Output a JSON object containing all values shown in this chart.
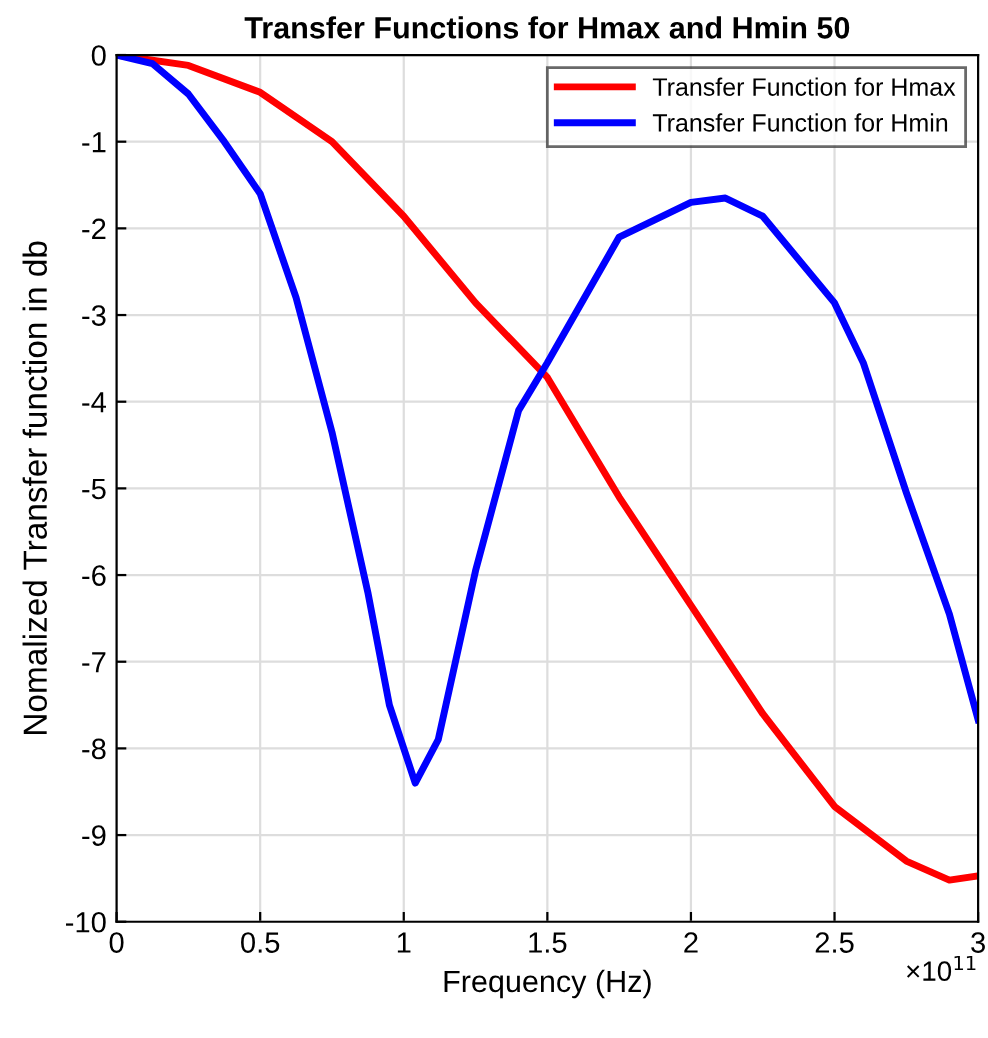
{
  "chart_data": {
    "type": "line",
    "title": "Transfer Functions for Hmax and Hmin 50",
    "xlabel": "Frequency (Hz)",
    "ylabel": "Nomalized Transfer function in db",
    "annotations": [
      "×10$^{11}$"
    ],
    "series": [
      {
        "name": "Transfer Function for Hmax",
        "color": "#ff0000",
        "x": [
          0,
          0.25,
          0.5,
          0.75,
          1.0,
          1.25,
          1.5,
          1.75,
          2.0,
          2.25,
          2.5,
          2.75,
          2.9,
          3.0
        ],
        "values": [
          0,
          -0.12,
          -0.43,
          -1.0,
          -1.86,
          -2.86,
          -3.72,
          -5.1,
          -6.35,
          -7.6,
          -8.67,
          -9.3,
          -9.52,
          -9.47
        ]
      },
      {
        "name": "Transfer Function for Hmin",
        "color": "#0000ff",
        "x": [
          0,
          0.125,
          0.25,
          0.375,
          0.5,
          0.625,
          0.75,
          0.875,
          0.95,
          1.04,
          1.12,
          1.25,
          1.4,
          1.5,
          1.75,
          2.0,
          2.12,
          2.25,
          2.5,
          2.6,
          2.75,
          2.9,
          3.0
        ],
        "values": [
          0,
          -0.1,
          -0.45,
          -1.0,
          -1.6,
          -2.8,
          -4.35,
          -6.2,
          -7.5,
          -8.4,
          -7.9,
          -5.95,
          -4.1,
          -3.55,
          -2.1,
          -1.7,
          -1.65,
          -1.86,
          -2.86,
          -3.55,
          -5.05,
          -6.45,
          -7.67
        ]
      }
    ],
    "xlim": [
      0,
      3
    ],
    "xticks": [
      0,
      0.5,
      1,
      1.5,
      2,
      2.5,
      3
    ],
    "ylim": [
      -10,
      0
    ],
    "yticks": [
      -10,
      -9,
      -8,
      -7,
      -6,
      -5,
      -4,
      -3,
      -2,
      -1,
      0
    ],
    "grid": true,
    "legend": "top right",
    "marker": "none",
    "line_style": "solid"
  }
}
